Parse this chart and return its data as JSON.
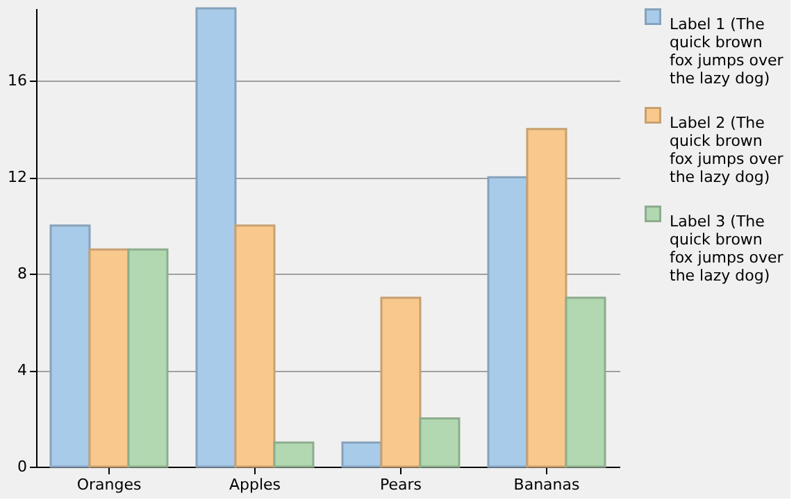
{
  "chart_data": {
    "type": "bar",
    "categories": [
      "Oranges",
      "Apples",
      "Pears",
      "Bananas"
    ],
    "series": [
      {
        "name": "Label 1 (The quick brown fox jumps over the lazy dog)",
        "color": "#a8cbea",
        "values": [
          10,
          19,
          1,
          12
        ]
      },
      {
        "name": "Label 2 (The quick brown fox jumps over the lazy dog)",
        "color": "#f9c88c",
        "values": [
          9,
          10,
          7,
          14
        ]
      },
      {
        "name": "Label 3 (The quick brown fox jumps over the lazy dog)",
        "color": "#b1d8b1",
        "values": [
          9,
          1,
          2,
          7
        ]
      }
    ],
    "ylim": [
      0,
      19
    ],
    "yticks": [
      0,
      4,
      8,
      12,
      16
    ],
    "grid": "y",
    "legend": "right"
  }
}
